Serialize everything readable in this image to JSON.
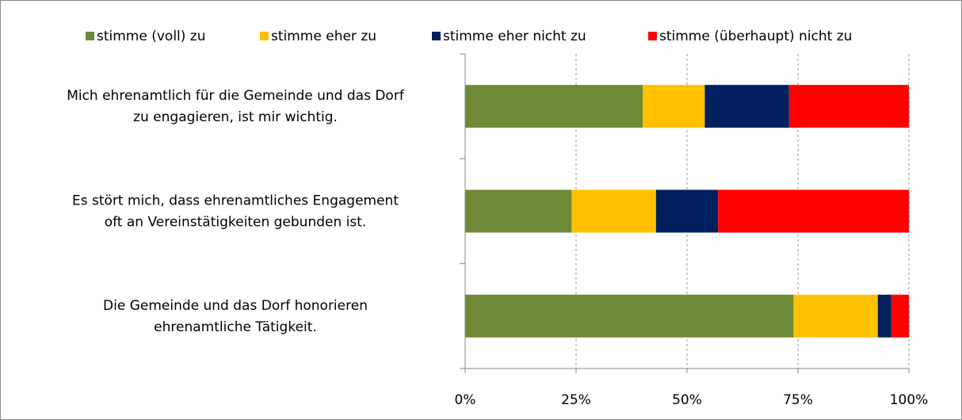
{
  "chart_data": {
    "type": "stacked-bar-horizontal",
    "categories": [
      [
        "Mich ehrenamtlich für die Gemeinde und das Dorf",
        "zu engagieren, ist mir wichtig."
      ],
      [
        "Es stört mich, dass ehrenamtliches Engagement",
        "oft an Vereinstätigkeiten gebunden ist."
      ],
      [
        "Die Gemeinde und das Dorf honorieren",
        "ehrenamtliche Tätigkeit."
      ]
    ],
    "series": [
      {
        "name": "stimme (voll) zu",
        "color": "#6f8a37",
        "values": [
          40,
          24,
          74
        ]
      },
      {
        "name": "stimme eher zu",
        "color": "#ffc000",
        "values": [
          14,
          19,
          19
        ]
      },
      {
        "name": "stimme eher nicht zu",
        "color": "#002060",
        "values": [
          19,
          14,
          3
        ]
      },
      {
        "name": "stimme (überhaupt) nicht zu",
        "color": "#ff0000",
        "values": [
          27,
          43,
          4
        ]
      }
    ],
    "xlim": [
      0,
      100
    ],
    "xticks": [
      {
        "value": 0,
        "label": "0%"
      },
      {
        "value": 25,
        "label": "25%"
      },
      {
        "value": 50,
        "label": "50%"
      },
      {
        "value": 75,
        "label": "75%"
      },
      {
        "value": 100,
        "label": "100%"
      }
    ],
    "grid": true,
    "legend": "top"
  }
}
